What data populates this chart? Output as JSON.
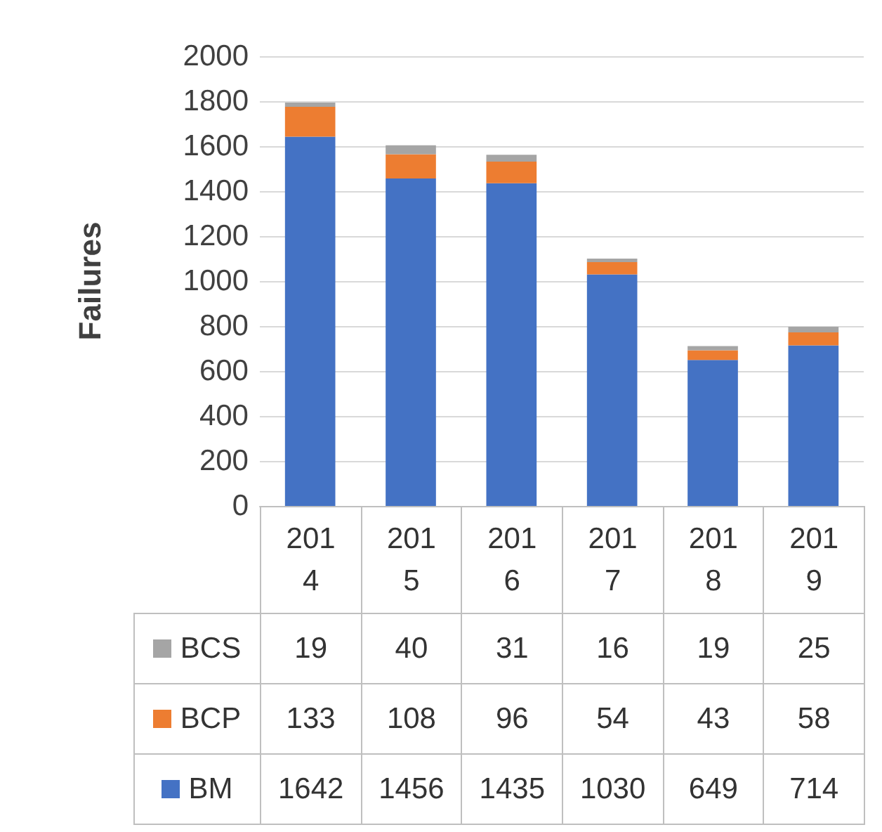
{
  "chart_data": {
    "type": "bar",
    "stacked": true,
    "ylabel": "Failures",
    "categories": [
      "2014",
      "2015",
      "2016",
      "2017",
      "2018",
      "2019"
    ],
    "series": [
      {
        "name": "BM",
        "color": "#4472c4",
        "values": [
          1642,
          1456,
          1435,
          1030,
          649,
          714
        ]
      },
      {
        "name": "BCP",
        "color": "#ed7d31",
        "values": [
          133,
          108,
          96,
          54,
          43,
          58
        ]
      },
      {
        "name": "BCS",
        "color": "#a5a5a5",
        "values": [
          19,
          40,
          31,
          16,
          19,
          25
        ]
      }
    ],
    "ylim": [
      0,
      2000
    ],
    "yticks": [
      0,
      200,
      400,
      600,
      800,
      1000,
      1200,
      1400,
      1600,
      1800,
      2000
    ],
    "grid": "y",
    "legend": "bottom",
    "data_labels": true
  }
}
